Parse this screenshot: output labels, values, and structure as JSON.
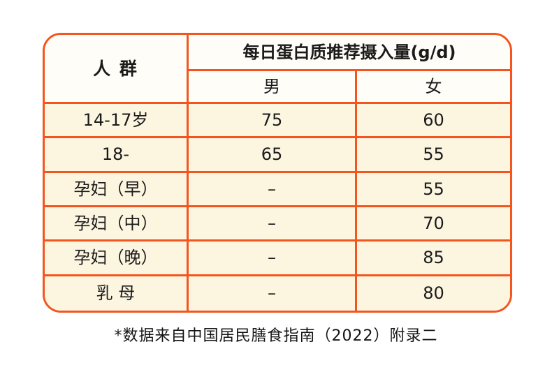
{
  "colors": {
    "border": "#F4551E",
    "header_bg": "#FFFDF7",
    "body_bg": "#FCF5E0",
    "text": "#1B1B1B"
  },
  "table": {
    "header": {
      "group_label": "人 群",
      "title": "每日蛋白质推荐摄入量(g/d)",
      "male_label": "男",
      "female_label": "女"
    },
    "rows": [
      {
        "group": "14-17岁",
        "male": "75",
        "female": "60"
      },
      {
        "group": "18-",
        "male": "65",
        "female": "55"
      },
      {
        "group": "孕妇（早）",
        "male": "–",
        "female": "55"
      },
      {
        "group": "孕妇（中）",
        "male": "–",
        "female": "70"
      },
      {
        "group": "孕妇（晚）",
        "male": "–",
        "female": "85"
      },
      {
        "group": "乳 母",
        "male": "–",
        "female": "80"
      }
    ],
    "footnote": "*数据来自中国居民膳食指南（2022）附录二"
  },
  "chart_data": {
    "type": "table",
    "title": "每日蛋白质推荐摄入量(g/d)",
    "columns": [
      "人群",
      "男",
      "女"
    ],
    "rows": [
      [
        "14-17岁",
        75,
        60
      ],
      [
        "18-",
        65,
        55
      ],
      [
        "孕妇（早）",
        "–",
        55
      ],
      [
        "孕妇（中）",
        "–",
        70
      ],
      [
        "孕妇（晚）",
        "–",
        85
      ],
      [
        "乳 母",
        "–",
        80
      ]
    ],
    "footnote": "*数据来自中国居民膳食指南（2022）附录二",
    "layout_hints": {
      "border_color": "#F4551E",
      "header_background": "#FFFDF7",
      "body_background": "#FCF5E0",
      "rounded_corners": true,
      "group_column_spans_two_header_rows": true,
      "title_spans_male_female_columns": true
    }
  }
}
